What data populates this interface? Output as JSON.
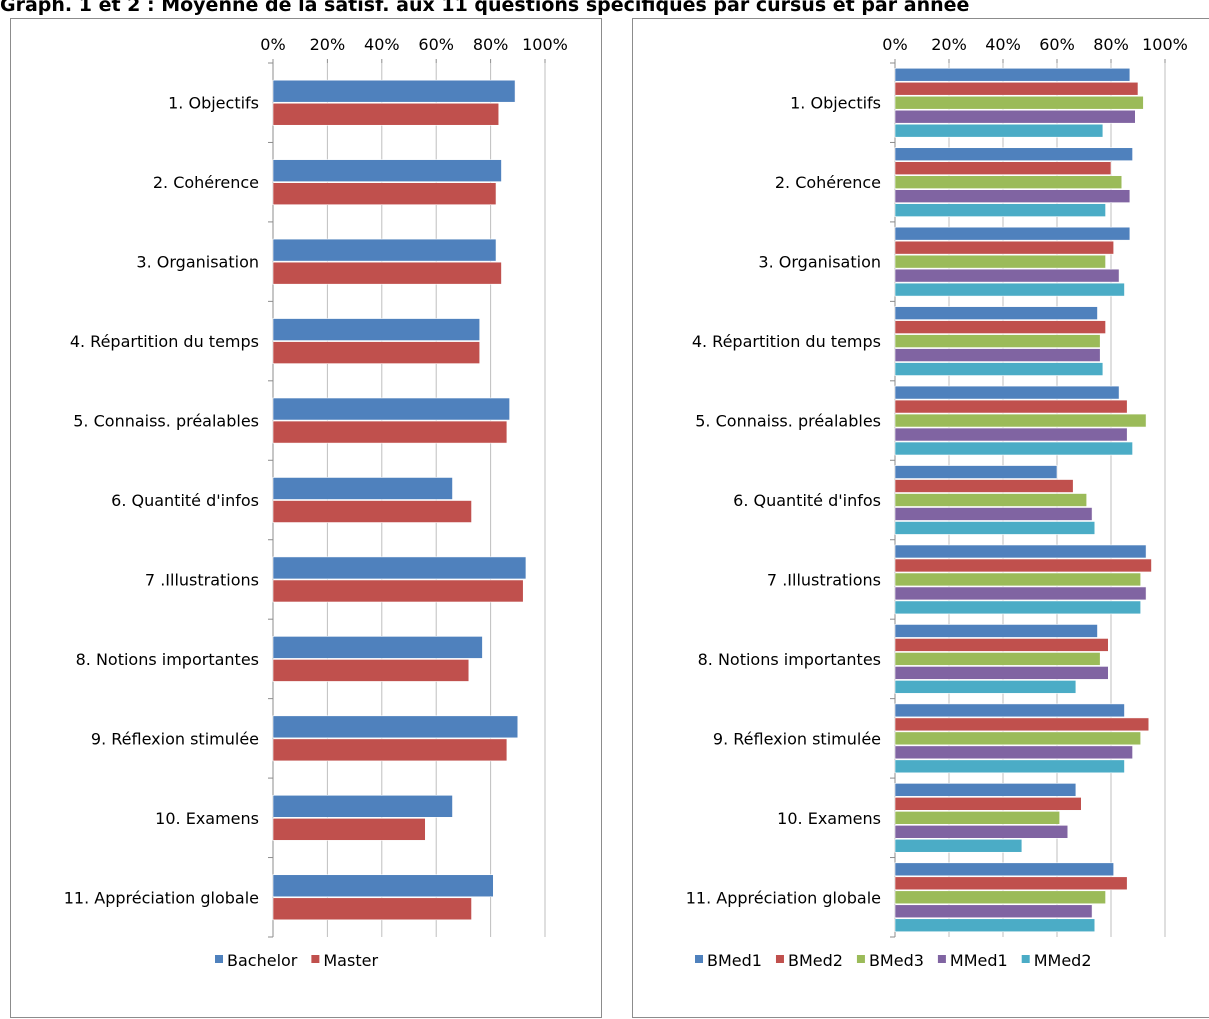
{
  "title": "Graph. 1 et 2 : Moyenne de la satisf. aux 11 questions spécifiques par cursus et par année",
  "chart_data": [
    {
      "type": "bar",
      "orientation": "horizontal",
      "categories": [
        "1. Objectifs",
        "2. Cohérence",
        "3. Organisation",
        "4. Répartition du temps",
        "5. Connaiss. préalables",
        "6. Quantité d'infos",
        "7 .Illustrations",
        "8. Notions importantes",
        "9. Réflexion stimulée",
        "10. Examens",
        "11. Appréciation globale"
      ],
      "series": [
        {
          "name": "Bachelor",
          "color": "#4f81bd",
          "values": [
            0.89,
            0.84,
            0.82,
            0.76,
            0.87,
            0.66,
            0.93,
            0.77,
            0.9,
            0.66,
            0.81
          ]
        },
        {
          "name": "Master",
          "color": "#c0504d",
          "values": [
            0.83,
            0.82,
            0.84,
            0.76,
            0.86,
            0.73,
            0.92,
            0.72,
            0.86,
            0.56,
            0.73
          ]
        }
      ],
      "xaxis_ticks": [
        "0%",
        "20%",
        "40%",
        "60%",
        "80%",
        "100%"
      ],
      "xlim": [
        0,
        1
      ],
      "xaxis_position": "top",
      "grid": true,
      "legend": "bottom"
    },
    {
      "type": "bar",
      "orientation": "horizontal",
      "categories": [
        "1. Objectifs",
        "2. Cohérence",
        "3. Organisation",
        "4. Répartition du temps",
        "5. Connaiss. préalables",
        "6. Quantité d'infos",
        "7 .Illustrations",
        "8. Notions importantes",
        "9. Réflexion stimulée",
        "10. Examens",
        "11. Appréciation globale"
      ],
      "series": [
        {
          "name": "BMed1",
          "color": "#4f81bd",
          "values": [
            0.87,
            0.88,
            0.87,
            0.75,
            0.83,
            0.6,
            0.93,
            0.75,
            0.85,
            0.67,
            0.81
          ]
        },
        {
          "name": "BMed2",
          "color": "#c0504d",
          "values": [
            0.9,
            0.8,
            0.81,
            0.78,
            0.86,
            0.66,
            0.95,
            0.79,
            0.94,
            0.69,
            0.86
          ]
        },
        {
          "name": "BMed3",
          "color": "#9bbb59",
          "values": [
            0.92,
            0.84,
            0.78,
            0.76,
            0.93,
            0.71,
            0.91,
            0.76,
            0.91,
            0.61,
            0.78
          ]
        },
        {
          "name": "MMed1",
          "color": "#8064a2",
          "values": [
            0.89,
            0.87,
            0.83,
            0.76,
            0.86,
            0.73,
            0.93,
            0.79,
            0.88,
            0.64,
            0.73
          ]
        },
        {
          "name": "MMed2",
          "color": "#4bacc6",
          "values": [
            0.77,
            0.78,
            0.85,
            0.77,
            0.88,
            0.74,
            0.91,
            0.67,
            0.85,
            0.47,
            0.74
          ]
        }
      ],
      "xaxis_ticks": [
        "0%",
        "20%",
        "40%",
        "60%",
        "80%",
        "100%"
      ],
      "xlim": [
        0,
        1
      ],
      "xaxis_position": "top",
      "grid": true,
      "legend": "bottom"
    }
  ]
}
